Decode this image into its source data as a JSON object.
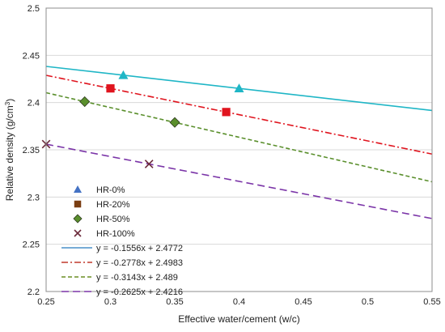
{
  "chart_data": {
    "type": "scatter",
    "title": "",
    "xlabel": "Effective water/cement (w/c)",
    "ylabel_main": "Relative density (g/cm",
    "ylabel_sup": "3",
    "ylabel_close": ")",
    "xlim": [
      0.25,
      0.55
    ],
    "ylim": [
      2.2,
      2.5
    ],
    "x_ticks": [
      "0.25",
      "0.3",
      "0.35",
      "0.4",
      "0.45",
      "0.5",
      "0.55"
    ],
    "y_ticks": [
      "2.2",
      "2.25",
      "2.3",
      "2.35",
      "2.4",
      "2.45",
      "2.5"
    ],
    "grid": "horizontal",
    "legend_position": "bottom-left",
    "series": [
      {
        "name": "HR-0%",
        "marker": "triangle",
        "color": "#1fb6c6",
        "points": [
          [
            0.31,
            2.429
          ],
          [
            0.4,
            2.415
          ]
        ]
      },
      {
        "name": "HR-20%",
        "marker": "square",
        "color": "#e0141e",
        "points": [
          [
            0.3,
            2.415
          ],
          [
            0.39,
            2.39
          ]
        ]
      },
      {
        "name": "HR-50%",
        "marker": "diamond",
        "color": "#5a8f2c",
        "points": [
          [
            0.28,
            2.401
          ],
          [
            0.35,
            2.379
          ]
        ]
      },
      {
        "name": "HR-100%",
        "marker": "x",
        "color": "#6b2a3a",
        "points": [
          [
            0.25,
            2.356
          ],
          [
            0.33,
            2.335
          ]
        ]
      }
    ],
    "legend_markers": [
      {
        "label": "HR-0%",
        "marker": "triangle",
        "color": "#4472c4"
      },
      {
        "label": "HR-20%",
        "marker": "square",
        "color": "#7a3e12"
      },
      {
        "label": "HR-50%",
        "marker": "diamond",
        "color": "#5a8f2c"
      },
      {
        "label": "HR-100%",
        "marker": "x",
        "color": "#6b2a3a"
      }
    ],
    "trendlines": [
      {
        "label": "y = -0.1556x + 2.4772",
        "slope": -0.1556,
        "intercept": 2.4772,
        "color": "#1fb6c6",
        "dash": "solid",
        "swatch": "#4a90c8"
      },
      {
        "label": "y = -0.2778x + 2.4983",
        "slope": -0.2778,
        "intercept": 2.4983,
        "color": "#e0141e",
        "dash": "dashdot",
        "swatch": "#c0392b"
      },
      {
        "label": "y = -0.3143x + 2.489",
        "slope": -0.3143,
        "intercept": 2.489,
        "color": "#5a8f2c",
        "dash": "dash",
        "swatch": "#6b8e23"
      },
      {
        "label": "y = -0.2625x + 2.4216",
        "slope": -0.2625,
        "intercept": 2.4216,
        "color": "#7b35a8",
        "dash": "longdash",
        "swatch": "#7b35a8"
      }
    ]
  }
}
